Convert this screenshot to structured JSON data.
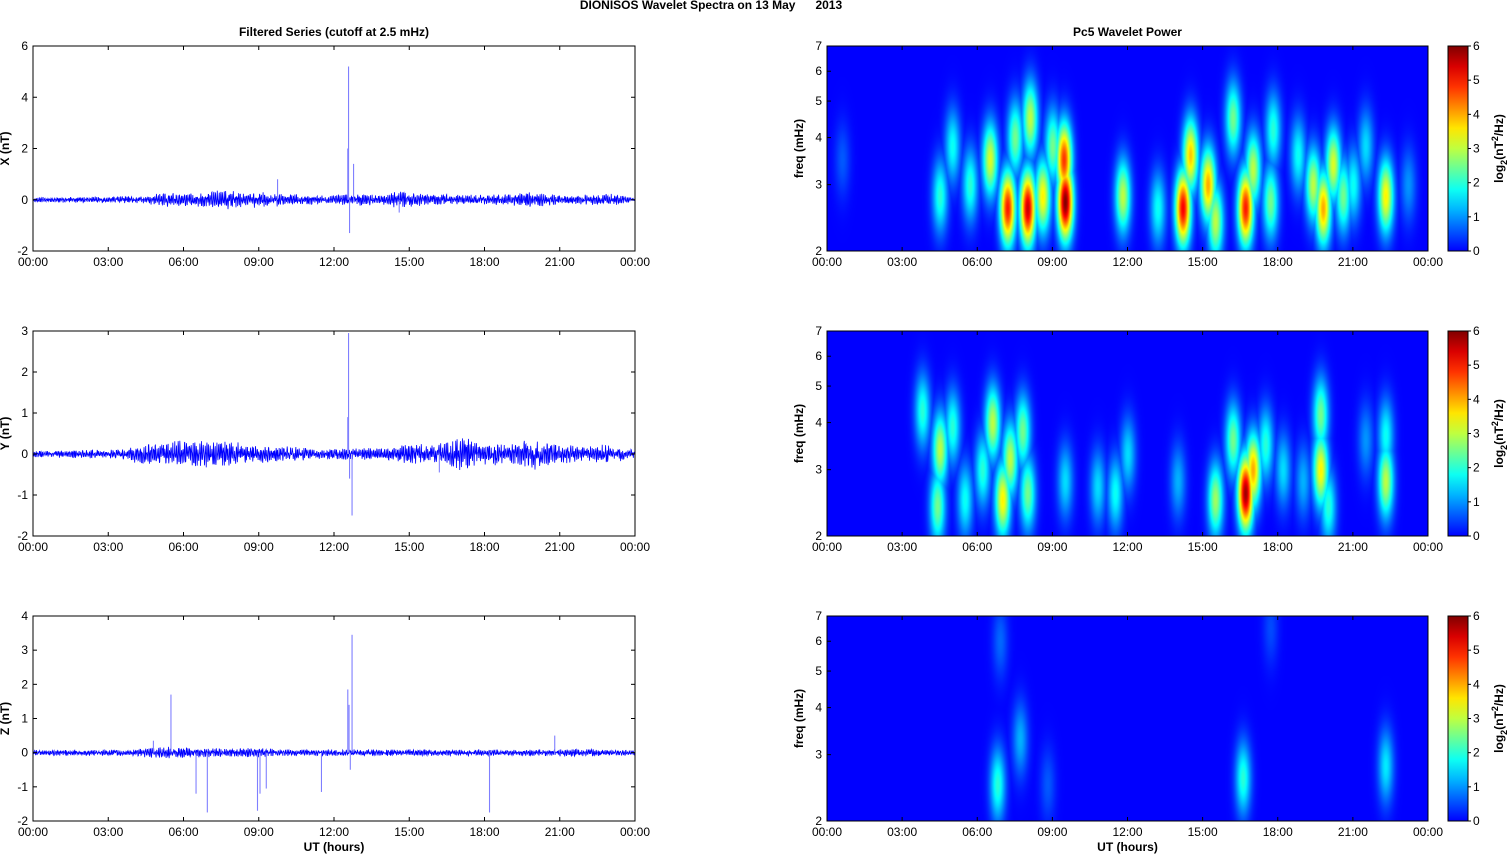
{
  "figure": {
    "title": "DIONISOS Wavelet Spectra on 13 May      2013"
  },
  "chart_data": [
    {
      "type": "line",
      "panel": "filtered-x",
      "title": "Filtered Series (cutoff at 2.5 mHz)",
      "xlabel": "",
      "ylabel": "X (nT)",
      "xlim": [
        0,
        24
      ],
      "ylim": [
        -2,
        6
      ],
      "xticks": [
        "00:00",
        "03:00",
        "06:00",
        "09:00",
        "12:00",
        "15:00",
        "18:00",
        "21:00",
        "00:00"
      ],
      "yticks": [
        "-2",
        "0",
        "2",
        "4",
        "6"
      ],
      "series_color": "#0000ff",
      "noise_envelope": [
        [
          0,
          0.1
        ],
        [
          4.5,
          0.15
        ],
        [
          5,
          0.3
        ],
        [
          6,
          0.25
        ],
        [
          7,
          0.35
        ],
        [
          8,
          0.4
        ],
        [
          9,
          0.3
        ],
        [
          10,
          0.25
        ],
        [
          11,
          0.2
        ],
        [
          12,
          0.2
        ],
        [
          13,
          0.25
        ],
        [
          14,
          0.2
        ],
        [
          14.5,
          0.35
        ],
        [
          15,
          0.3
        ],
        [
          16,
          0.25
        ],
        [
          17,
          0.2
        ],
        [
          18,
          0.2
        ],
        [
          19,
          0.25
        ],
        [
          20,
          0.3
        ],
        [
          21,
          0.2
        ],
        [
          22,
          0.2
        ],
        [
          23,
          0.25
        ],
        [
          24,
          0.1
        ]
      ],
      "spikes": [
        [
          12.58,
          5.2
        ],
        [
          12.55,
          2.0
        ],
        [
          12.62,
          -1.3
        ],
        [
          12.78,
          1.4
        ],
        [
          9.75,
          0.8
        ],
        [
          14.6,
          -0.5
        ]
      ]
    },
    {
      "type": "line",
      "panel": "filtered-y",
      "title": "",
      "xlabel": "",
      "ylabel": "Y (nT)",
      "xlim": [
        0,
        24
      ],
      "ylim": [
        -2,
        3
      ],
      "xticks": [
        "00:00",
        "03:00",
        "06:00",
        "09:00",
        "12:00",
        "15:00",
        "18:00",
        "21:00",
        "00:00"
      ],
      "yticks": [
        "-2",
        "-1",
        "0",
        "1",
        "2",
        "3"
      ],
      "series_color": "#0000ff",
      "noise_envelope": [
        [
          0,
          0.08
        ],
        [
          3.5,
          0.12
        ],
        [
          4.5,
          0.3
        ],
        [
          6,
          0.35
        ],
        [
          7,
          0.35
        ],
        [
          8,
          0.3
        ],
        [
          9,
          0.25
        ],
        [
          10,
          0.2
        ],
        [
          11,
          0.15
        ],
        [
          12,
          0.15
        ],
        [
          14,
          0.15
        ],
        [
          15,
          0.25
        ],
        [
          16.5,
          0.3
        ],
        [
          17,
          0.45
        ],
        [
          18,
          0.3
        ],
        [
          19,
          0.25
        ],
        [
          20,
          0.4
        ],
        [
          21,
          0.25
        ],
        [
          22,
          0.2
        ],
        [
          23,
          0.25
        ],
        [
          24,
          0.1
        ]
      ],
      "spikes": [
        [
          12.58,
          2.95
        ],
        [
          12.55,
          0.9
        ],
        [
          12.62,
          -0.6
        ],
        [
          12.72,
          -1.5
        ],
        [
          16.2,
          -0.45
        ]
      ]
    },
    {
      "type": "line",
      "panel": "filtered-z",
      "title": "",
      "xlabel": "UT (hours)",
      "ylabel": "Z (nT)",
      "xlim": [
        0,
        24
      ],
      "ylim": [
        -2,
        4
      ],
      "xticks": [
        "00:00",
        "03:00",
        "06:00",
        "09:00",
        "12:00",
        "15:00",
        "18:00",
        "21:00",
        "00:00"
      ],
      "yticks": [
        "-2",
        "-1",
        "0",
        "1",
        "2",
        "3",
        "4"
      ],
      "series_color": "#0000ff",
      "noise_envelope": [
        [
          0,
          0.08
        ],
        [
          4,
          0.1
        ],
        [
          5,
          0.2
        ],
        [
          6,
          0.15
        ],
        [
          7,
          0.15
        ],
        [
          8,
          0.12
        ],
        [
          9,
          0.15
        ],
        [
          10,
          0.1
        ],
        [
          12,
          0.1
        ],
        [
          14,
          0.1
        ],
        [
          16,
          0.1
        ],
        [
          18,
          0.1
        ],
        [
          20,
          0.1
        ],
        [
          22,
          0.12
        ],
        [
          24,
          0.08
        ]
      ],
      "spikes": [
        [
          5.5,
          1.7
        ],
        [
          4.8,
          0.35
        ],
        [
          6.5,
          -1.2
        ],
        [
          6.95,
          -1.75
        ],
        [
          8.95,
          -1.7
        ],
        [
          9.05,
          -1.2
        ],
        [
          9.3,
          -1.05
        ],
        [
          11.5,
          -1.15
        ],
        [
          12.55,
          1.85
        ],
        [
          12.6,
          1.4
        ],
        [
          12.72,
          3.45
        ],
        [
          12.65,
          -0.5
        ],
        [
          18.2,
          -1.75
        ],
        [
          20.8,
          0.5
        ]
      ]
    },
    {
      "type": "heatmap",
      "panel": "wavelet-x",
      "title": "Pc5 Wavelet Power",
      "xlabel": "",
      "ylabel": "freq (mHz)",
      "xlim": [
        0,
        24
      ],
      "ylim": [
        2,
        7
      ],
      "yscale": "log",
      "xticks": [
        "00:00",
        "03:00",
        "06:00",
        "09:00",
        "12:00",
        "15:00",
        "18:00",
        "21:00",
        "00:00"
      ],
      "yticks": [
        "2",
        "3",
        "4",
        "5",
        "6",
        "7"
      ],
      "colorbar": {
        "label": "log2(nT^2/Hz)",
        "range": [
          0,
          6
        ],
        "ticks": [
          "0",
          "1",
          "2",
          "3",
          "4",
          "5",
          "6"
        ],
        "colormap": "jet"
      },
      "blobs": [
        {
          "t": 0.6,
          "f": 3.5,
          "p": 0.6
        },
        {
          "t": 4.5,
          "f": 2.8,
          "p": 2.0
        },
        {
          "t": 5.0,
          "f": 3.8,
          "p": 1.8
        },
        {
          "t": 5.7,
          "f": 3.0,
          "p": 2.0
        },
        {
          "t": 6.5,
          "f": 3.5,
          "p": 3.2
        },
        {
          "t": 7.2,
          "f": 2.6,
          "p": 5.0
        },
        {
          "t": 7.5,
          "f": 4.0,
          "p": 2.5
        },
        {
          "t": 8.0,
          "f": 2.6,
          "p": 5.5
        },
        {
          "t": 8.1,
          "f": 4.5,
          "p": 3.0
        },
        {
          "t": 8.6,
          "f": 2.8,
          "p": 3.5
        },
        {
          "t": 9.0,
          "f": 3.8,
          "p": 2.5
        },
        {
          "t": 9.5,
          "f": 2.7,
          "p": 6.0
        },
        {
          "t": 9.45,
          "f": 3.5,
          "p": 4.8
        },
        {
          "t": 11.8,
          "f": 2.8,
          "p": 3.0
        },
        {
          "t": 13.2,
          "f": 2.6,
          "p": 1.8
        },
        {
          "t": 14.2,
          "f": 2.6,
          "p": 5.2
        },
        {
          "t": 14.5,
          "f": 3.6,
          "p": 3.8
        },
        {
          "t": 15.2,
          "f": 3.0,
          "p": 4.0
        },
        {
          "t": 15.5,
          "f": 2.4,
          "p": 3.0
        },
        {
          "t": 16.2,
          "f": 4.5,
          "p": 2.5
        },
        {
          "t": 16.7,
          "f": 2.6,
          "p": 5.0
        },
        {
          "t": 17.0,
          "f": 3.3,
          "p": 3.0
        },
        {
          "t": 17.7,
          "f": 2.7,
          "p": 2.5
        },
        {
          "t": 17.8,
          "f": 4.2,
          "p": 2.0
        },
        {
          "t": 18.8,
          "f": 3.6,
          "p": 1.8
        },
        {
          "t": 19.4,
          "f": 3.0,
          "p": 3.0
        },
        {
          "t": 19.8,
          "f": 2.6,
          "p": 4.0
        },
        {
          "t": 20.2,
          "f": 3.4,
          "p": 3.2
        },
        {
          "t": 20.6,
          "f": 2.8,
          "p": 2.5
        },
        {
          "t": 21.0,
          "f": 3.0,
          "p": 1.8
        },
        {
          "t": 21.5,
          "f": 3.8,
          "p": 1.5
        },
        {
          "t": 22.3,
          "f": 2.8,
          "p": 3.5
        },
        {
          "t": 23.2,
          "f": 3.0,
          "p": 1.0
        }
      ]
    },
    {
      "type": "heatmap",
      "panel": "wavelet-y",
      "title": "",
      "xlabel": "",
      "ylabel": "freq (mHz)",
      "xlim": [
        0,
        24
      ],
      "ylim": [
        2,
        7
      ],
      "yscale": "log",
      "xticks": [
        "00:00",
        "03:00",
        "06:00",
        "09:00",
        "12:00",
        "15:00",
        "18:00",
        "21:00",
        "00:00"
      ],
      "yticks": [
        "2",
        "3",
        "4",
        "5",
        "6",
        "7"
      ],
      "colorbar": {
        "label": "log2(nT^2/Hz)",
        "range": [
          0,
          6
        ],
        "ticks": [
          "0",
          "1",
          "2",
          "3",
          "4",
          "5",
          "6"
        ],
        "colormap": "jet"
      },
      "blobs": [
        {
          "t": 3.8,
          "f": 4.3,
          "p": 2.0
        },
        {
          "t": 4.4,
          "f": 2.4,
          "p": 2.5
        },
        {
          "t": 4.5,
          "f": 3.4,
          "p": 3.0
        },
        {
          "t": 5.0,
          "f": 3.9,
          "p": 2.0
        },
        {
          "t": 5.5,
          "f": 2.5,
          "p": 1.8
        },
        {
          "t": 6.2,
          "f": 3.0,
          "p": 2.0
        },
        {
          "t": 6.6,
          "f": 4.0,
          "p": 3.0
        },
        {
          "t": 7.0,
          "f": 2.5,
          "p": 3.5
        },
        {
          "t": 7.3,
          "f": 3.2,
          "p": 3.0
        },
        {
          "t": 7.8,
          "f": 3.8,
          "p": 2.5
        },
        {
          "t": 8.0,
          "f": 2.6,
          "p": 2.5
        },
        {
          "t": 9.5,
          "f": 2.8,
          "p": 1.5
        },
        {
          "t": 10.8,
          "f": 2.7,
          "p": 1.5
        },
        {
          "t": 11.5,
          "f": 2.6,
          "p": 1.8
        },
        {
          "t": 12.0,
          "f": 3.3,
          "p": 1.5
        },
        {
          "t": 14.0,
          "f": 2.8,
          "p": 1.2
        },
        {
          "t": 15.5,
          "f": 2.5,
          "p": 2.8
        },
        {
          "t": 16.2,
          "f": 3.6,
          "p": 2.5
        },
        {
          "t": 16.7,
          "f": 2.6,
          "p": 5.8
        },
        {
          "t": 17.0,
          "f": 3.0,
          "p": 4.0
        },
        {
          "t": 17.5,
          "f": 3.5,
          "p": 2.0
        },
        {
          "t": 18.2,
          "f": 3.0,
          "p": 1.5
        },
        {
          "t": 19.0,
          "f": 2.8,
          "p": 1.2
        },
        {
          "t": 19.7,
          "f": 3.0,
          "p": 3.5
        },
        {
          "t": 19.7,
          "f": 4.2,
          "p": 2.5
        },
        {
          "t": 20.0,
          "f": 2.4,
          "p": 2.0
        },
        {
          "t": 21.5,
          "f": 3.6,
          "p": 1.0
        },
        {
          "t": 22.3,
          "f": 2.8,
          "p": 3.0
        },
        {
          "t": 22.3,
          "f": 3.7,
          "p": 1.8
        }
      ]
    },
    {
      "type": "heatmap",
      "panel": "wavelet-z",
      "title": "",
      "xlabel": "UT (hours)",
      "ylabel": "freq (mHz)",
      "xlim": [
        0,
        24
      ],
      "ylim": [
        2,
        7
      ],
      "yscale": "log",
      "xticks": [
        "00:00",
        "03:00",
        "06:00",
        "09:00",
        "12:00",
        "15:00",
        "18:00",
        "21:00",
        "00:00"
      ],
      "yticks": [
        "2",
        "3",
        "4",
        "5",
        "6",
        "7"
      ],
      "colorbar": {
        "label": "log2(nT^2/Hz)",
        "range": [
          0,
          6
        ],
        "ticks": [
          "0",
          "1",
          "2",
          "3",
          "4",
          "5",
          "6"
        ],
        "colormap": "jet"
      },
      "blobs": [
        {
          "t": 6.8,
          "f": 2.5,
          "p": 2.0
        },
        {
          "t": 6.9,
          "f": 6.0,
          "p": 0.7
        },
        {
          "t": 7.7,
          "f": 3.3,
          "p": 1.2
        },
        {
          "t": 8.8,
          "f": 2.5,
          "p": 0.6
        },
        {
          "t": 16.6,
          "f": 2.6,
          "p": 2.0
        },
        {
          "t": 17.7,
          "f": 6.5,
          "p": 0.5
        },
        {
          "t": 22.3,
          "f": 2.8,
          "p": 1.6
        }
      ]
    }
  ]
}
